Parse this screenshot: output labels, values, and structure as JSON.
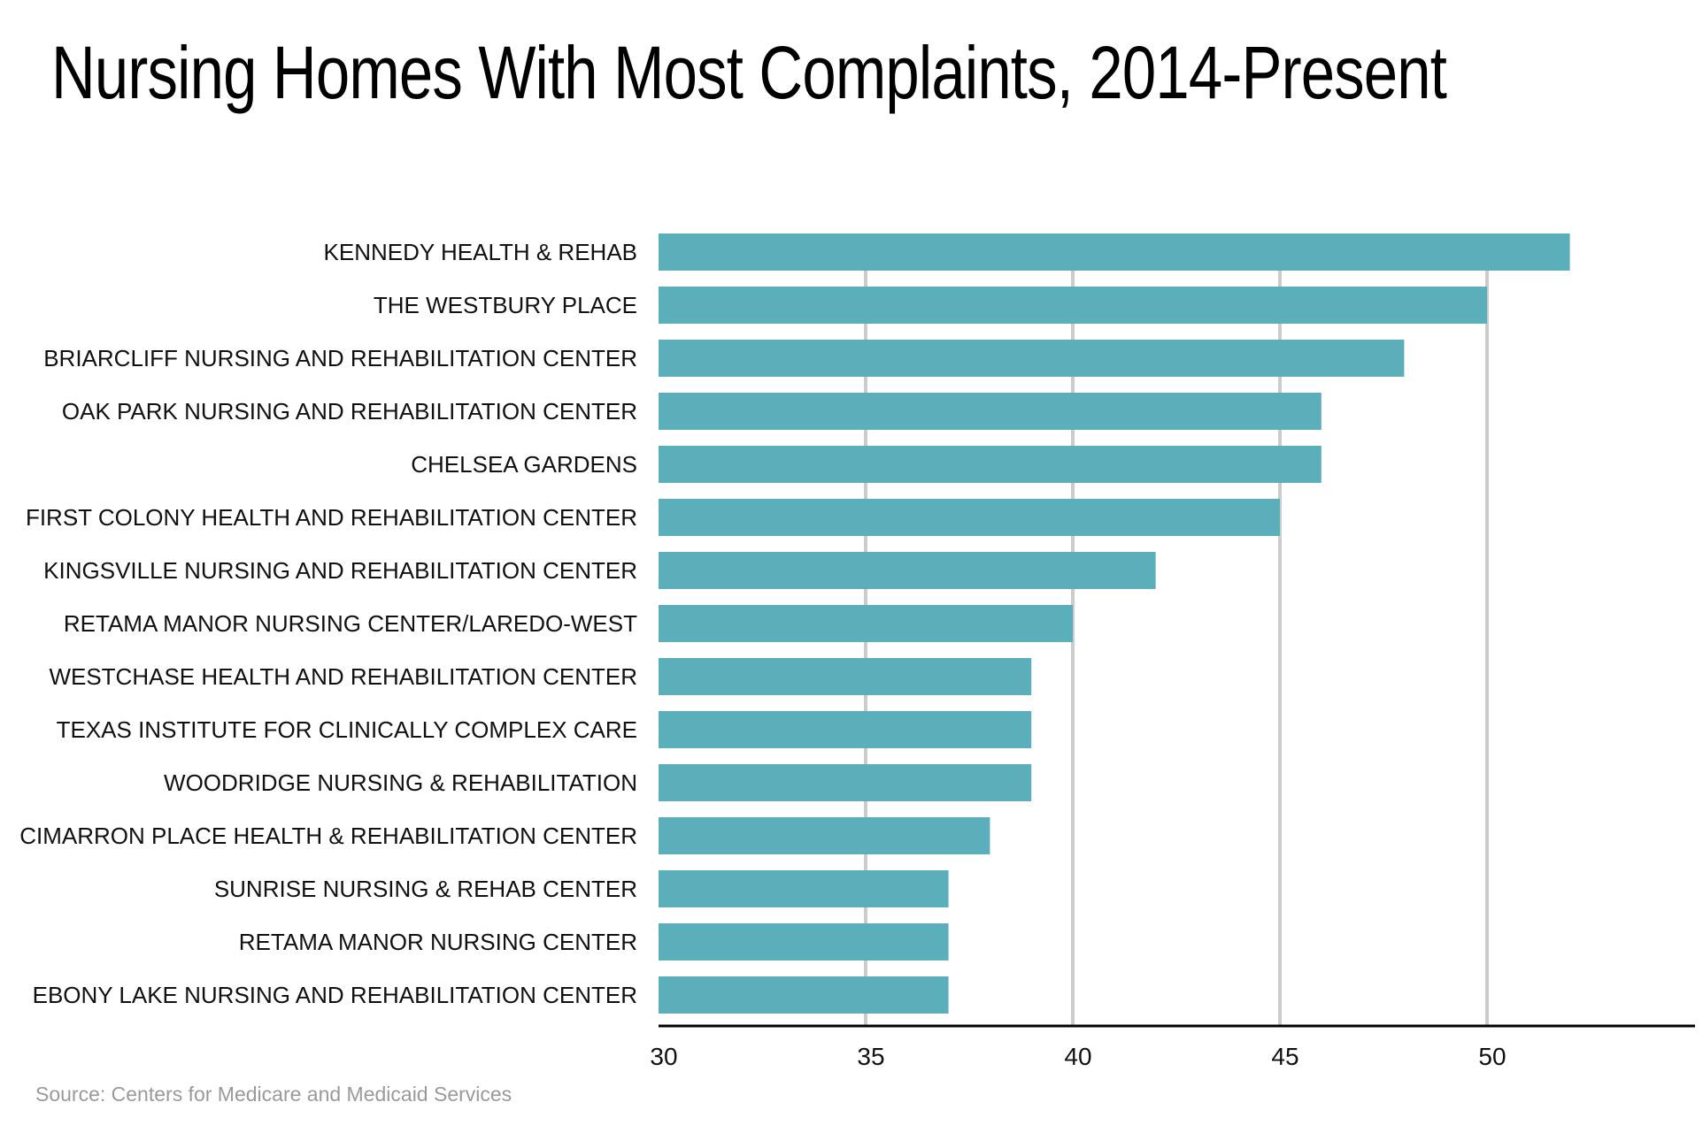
{
  "title": "Nursing Homes With Most Complaints, 2014-Present",
  "source": "Source: Centers for Medicare and Medicaid Services",
  "colors": {
    "bar": "#5aafbb",
    "grid": "#cccccc",
    "axis": "#000000"
  },
  "chart_data": {
    "type": "bar",
    "orientation": "horizontal",
    "title": "Nursing Homes With Most Complaints, 2014-Present",
    "xlabel": "",
    "ylabel": "",
    "xlim": [
      30,
      55
    ],
    "xticks": [
      30,
      35,
      40,
      45,
      50
    ],
    "grid": true,
    "categories": [
      "KENNEDY HEALTH & REHAB",
      "THE WESTBURY PLACE",
      "BRIARCLIFF NURSING AND REHABILITATION CENTER",
      "OAK PARK NURSING AND REHABILITATION CENTER",
      "CHELSEA GARDENS",
      "FIRST COLONY HEALTH AND REHABILITATION CENTER",
      "KINGSVILLE NURSING AND REHABILITATION CENTER",
      "RETAMA MANOR NURSING CENTER/LAREDO-WEST",
      "WESTCHASE HEALTH AND REHABILITATION CENTER",
      "TEXAS INSTITUTE FOR CLINICALLY COMPLEX CARE",
      "WOODRIDGE NURSING & REHABILITATION",
      "CIMARRON PLACE HEALTH & REHABILITATION CENTER",
      "SUNRISE NURSING & REHAB CENTER",
      "RETAMA MANOR NURSING CENTER",
      "EBONY LAKE NURSING AND REHABILITATION CENTER"
    ],
    "values": [
      52,
      50,
      48,
      46,
      46,
      45,
      42,
      40,
      39,
      39,
      39,
      38,
      37,
      37,
      37
    ]
  }
}
